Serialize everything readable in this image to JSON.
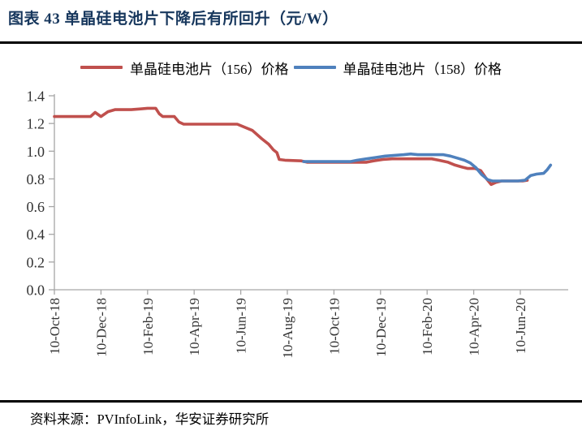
{
  "header": {
    "title": "图表 43 单晶硅电池片下降后有所回升（元/W）"
  },
  "footer": {
    "source": "资料来源：PVInfoLink，华安证券研究所"
  },
  "colors": {
    "title_text": "#17375D",
    "rule": "#000000",
    "axis": "#A6A6A6",
    "tick_text": "#333333",
    "series_156": "#C0504D",
    "series_158": "#4F81BD"
  },
  "chart_data": {
    "type": "line",
    "title": "单晶硅电池片下降后有所回升（元/W）",
    "unit": "元/W",
    "xlabel": "",
    "ylabel": "",
    "ylim": [
      0.0,
      1.4
    ],
    "grid": false,
    "legend_position": "top",
    "y_tick_labels": [
      "0.0",
      "0.2",
      "0.4",
      "0.6",
      "0.8",
      "1.0",
      "1.2",
      "1.4"
    ],
    "x_tick_labels": [
      "10-Oct-18",
      "10-Dec-18",
      "10-Feb-19",
      "10-Apr-19",
      "10-Jun-19",
      "10-Aug-19",
      "10-Oct-19",
      "10-Dec-19",
      "10-Feb-20",
      "10-Apr-20",
      "10-Jun-20"
    ],
    "x_tick_months": [
      0,
      2,
      4,
      6,
      8,
      10,
      12,
      14,
      16,
      18,
      20
    ],
    "x_months_start_label": "10-Oct-18",
    "series": [
      {
        "name": "单晶硅电池片（156）价格",
        "color": "#C0504D",
        "points": [
          [
            0.0,
            1.25
          ],
          [
            1.55,
            1.25
          ],
          [
            1.75,
            1.28
          ],
          [
            2.0,
            1.25
          ],
          [
            2.3,
            1.285
          ],
          [
            2.6,
            1.3
          ],
          [
            3.3,
            1.3
          ],
          [
            3.7,
            1.305
          ],
          [
            4.0,
            1.31
          ],
          [
            4.35,
            1.31
          ],
          [
            4.5,
            1.27
          ],
          [
            4.65,
            1.25
          ],
          [
            5.15,
            1.25
          ],
          [
            5.35,
            1.21
          ],
          [
            5.55,
            1.195
          ],
          [
            7.85,
            1.195
          ],
          [
            8.5,
            1.15
          ],
          [
            8.9,
            1.09
          ],
          [
            9.2,
            1.05
          ],
          [
            9.4,
            1.01
          ],
          [
            9.55,
            0.99
          ],
          [
            9.65,
            0.94
          ],
          [
            9.9,
            0.935
          ],
          [
            10.6,
            0.93
          ],
          [
            10.85,
            0.92
          ],
          [
            13.4,
            0.92
          ],
          [
            13.7,
            0.93
          ],
          [
            14.1,
            0.94
          ],
          [
            14.5,
            0.945
          ],
          [
            16.2,
            0.945
          ],
          [
            16.5,
            0.935
          ],
          [
            16.9,
            0.92
          ],
          [
            17.2,
            0.9
          ],
          [
            17.5,
            0.885
          ],
          [
            17.75,
            0.875
          ],
          [
            18.05,
            0.875
          ],
          [
            18.3,
            0.86
          ],
          [
            18.55,
            0.8
          ],
          [
            18.75,
            0.76
          ],
          [
            18.95,
            0.775
          ],
          [
            19.2,
            0.785
          ],
          [
            20.1,
            0.785
          ],
          [
            20.3,
            0.79
          ]
        ]
      },
      {
        "name": "单晶硅电池片（158）价格",
        "color": "#4F81BD",
        "points": [
          [
            10.7,
            0.925
          ],
          [
            12.7,
            0.925
          ],
          [
            13.0,
            0.935
          ],
          [
            13.4,
            0.945
          ],
          [
            13.8,
            0.955
          ],
          [
            14.2,
            0.965
          ],
          [
            14.6,
            0.97
          ],
          [
            15.0,
            0.975
          ],
          [
            15.3,
            0.98
          ],
          [
            15.6,
            0.975
          ],
          [
            16.7,
            0.975
          ],
          [
            17.0,
            0.965
          ],
          [
            17.3,
            0.95
          ],
          [
            17.6,
            0.935
          ],
          [
            17.85,
            0.915
          ],
          [
            18.1,
            0.88
          ],
          [
            18.35,
            0.83
          ],
          [
            18.6,
            0.795
          ],
          [
            18.8,
            0.785
          ],
          [
            19.9,
            0.785
          ],
          [
            20.2,
            0.79
          ],
          [
            20.45,
            0.825
          ],
          [
            20.7,
            0.835
          ],
          [
            21.0,
            0.84
          ],
          [
            21.15,
            0.865
          ],
          [
            21.3,
            0.9
          ]
        ]
      }
    ]
  }
}
